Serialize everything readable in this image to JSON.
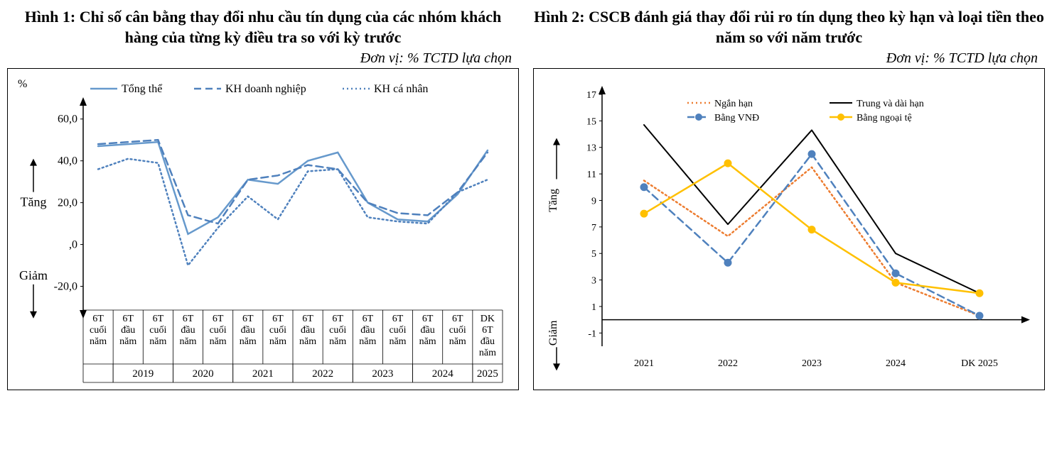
{
  "chart1": {
    "type": "line",
    "title": "Hình 1:  Chỉ số cân bằng thay đổi nhu cầu tín dụng của các nhóm khách hàng của từng kỳ điều tra so với kỳ trước",
    "unit": "Đơn vị: % TCTD lựa chọn",
    "corner_label": "%",
    "ylabel_up": "Tăng",
    "ylabel_down": "Giảm",
    "ylim": [
      -30,
      65
    ],
    "yticks": [
      -20,
      0,
      20,
      40,
      60
    ],
    "ytick_labels": [
      "-20,0",
      ",0",
      "20,0",
      "40,0",
      "60,0"
    ],
    "x_categories": [
      "6T cuối năm",
      "6T đầu năm",
      "6T cuối năm",
      "6T đầu năm",
      "6T cuối năm",
      "6T đầu năm",
      "6T cuối năm",
      "6T đầu năm",
      "6T cuối năm",
      "6T đầu năm",
      "6T cuối năm",
      "6T đầu năm",
      "6T cuối năm",
      "DK 6T đầu năm"
    ],
    "x_groups": [
      {
        "label": "",
        "span": [
          0,
          0
        ]
      },
      {
        "label": "2019",
        "span": [
          1,
          2
        ]
      },
      {
        "label": "2020",
        "span": [
          3,
          4
        ]
      },
      {
        "label": "2021",
        "span": [
          5,
          6
        ]
      },
      {
        "label": "2022",
        "span": [
          7,
          8
        ]
      },
      {
        "label": "2023",
        "span": [
          9,
          10
        ]
      },
      {
        "label": "2024",
        "span": [
          11,
          12
        ]
      },
      {
        "label": "2025",
        "span": [
          13,
          13
        ]
      }
    ],
    "series": [
      {
        "name": "Tổng thể",
        "style": "solid",
        "color": "#6699cc",
        "width": 2.5,
        "values": [
          47,
          48,
          49,
          5,
          13,
          31,
          29,
          40,
          44,
          20,
          12,
          11,
          24,
          45
        ]
      },
      {
        "name": "KH doanh nghiệp",
        "style": "dash",
        "color": "#4f81bd",
        "width": 2.5,
        "values": [
          48,
          49,
          50,
          14,
          10,
          31,
          33,
          38,
          36,
          20,
          15,
          14,
          25,
          44
        ]
      },
      {
        "name": "KH cá nhân",
        "style": "dot",
        "color": "#4f81bd",
        "width": 2.5,
        "values": [
          36,
          41,
          39,
          -10,
          8,
          23,
          12,
          35,
          36,
          13,
          11,
          10,
          25,
          31
        ]
      }
    ],
    "legend_fontsize": 16,
    "tick_fontsize": 16,
    "axis_label_fontsize": 18,
    "background_color": "#ffffff",
    "grid_color": "#bfbfbf"
  },
  "chart2": {
    "type": "line",
    "title": "Hình 2: CSCB đánh giá thay đổi rủi ro tín dụng theo kỳ hạn và loại tiền theo năm so với năm trước",
    "unit": "Đơn vị: % TCTD lựa chọn",
    "ylabel_up": "Tăng",
    "ylabel_down": "Giảm",
    "ylim": [
      -2,
      17
    ],
    "yticks": [
      -1,
      1,
      3,
      5,
      7,
      9,
      11,
      13,
      15,
      17
    ],
    "ytick_labels": [
      "-1",
      "1",
      "3",
      "5",
      "7",
      "9",
      "11",
      "13",
      "15",
      "17"
    ],
    "x_categories": [
      "2021",
      "2022",
      "2023",
      "2024",
      "DK 2025"
    ],
    "series": [
      {
        "name": "Ngắn hạn",
        "style": "dot",
        "color": "#ed7d31",
        "width": 2.5,
        "marker": "none",
        "values": [
          10.5,
          6.3,
          11.5,
          2.8,
          0.3
        ]
      },
      {
        "name": "Trung và dài hạn",
        "style": "solid",
        "color": "#000000",
        "width": 2,
        "marker": "none",
        "values": [
          14.7,
          7.2,
          14.3,
          5.0,
          2.0
        ]
      },
      {
        "name": "Bằng VNĐ",
        "style": "dash",
        "color": "#4f81bd",
        "width": 2.5,
        "marker": "circle",
        "marker_fill": "#4f81bd",
        "values": [
          10.0,
          4.3,
          12.5,
          3.5,
          0.3
        ]
      },
      {
        "name": "Bằng ngoại tệ",
        "style": "solid",
        "color": "#ffc000",
        "width": 2.5,
        "marker": "circle",
        "marker_fill": "#ffc000",
        "values": [
          8.0,
          11.8,
          6.8,
          2.8,
          2.0
        ]
      }
    ],
    "legend_fontsize": 14,
    "tick_fontsize": 14,
    "axis_label_fontsize": 16,
    "background_color": "#ffffff"
  }
}
